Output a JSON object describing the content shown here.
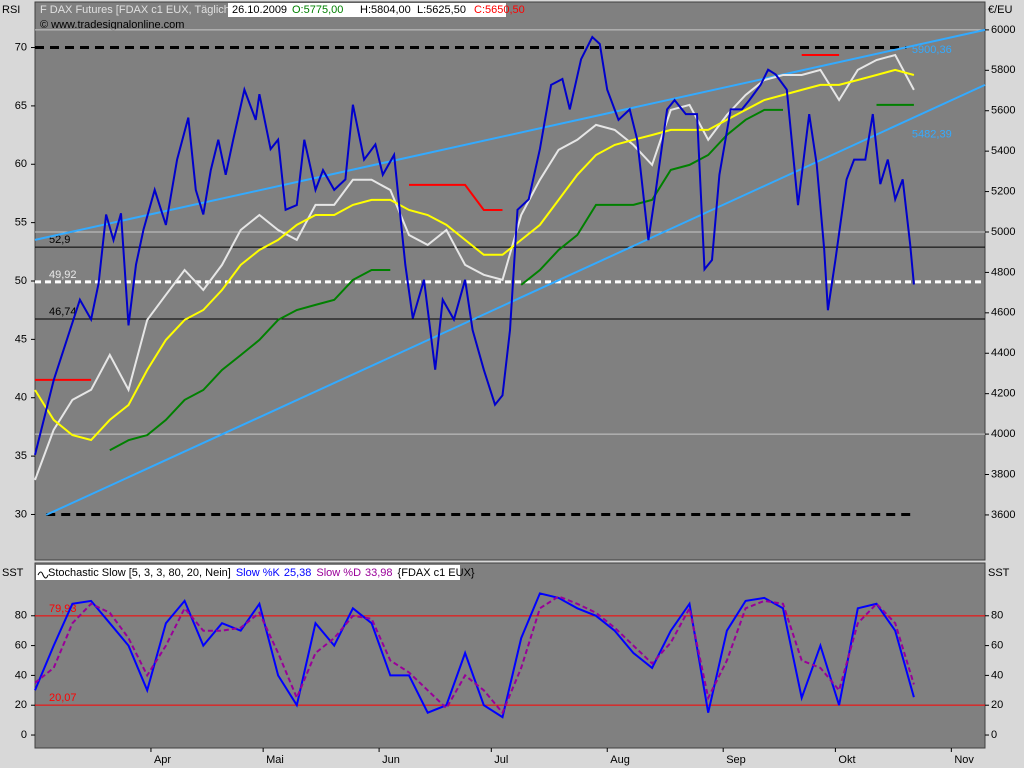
{
  "chart_data": [
    {
      "type": "line",
      "title": "F DAX Futures [FDAX c1 EUX, Täglich]",
      "quote": {
        "date": "26.10.2009",
        "open": "O:5775,00",
        "high": "H:5804,00",
        "low": "L:5625,50",
        "close": "C:5650,50"
      },
      "copyright": "© www.tradesignalonline.com",
      "ylabel": "RSI",
      "y2label": "€/EU",
      "xlim": [
        60,
        314
      ],
      "ylim": [
        26.1,
        73.9
      ],
      "y2lim": [
        3377,
        6138
      ],
      "yticks": [
        30,
        35,
        40,
        45,
        50,
        55,
        60,
        65,
        70
      ],
      "y2ticks": [
        3600,
        3800,
        4000,
        4200,
        4400,
        4600,
        4800,
        5000,
        5200,
        5400,
        5600,
        5800,
        6000
      ],
      "y2grid": [
        4000,
        5000,
        6000
      ],
      "x": [
        60,
        65,
        70,
        75,
        80,
        85,
        90,
        95,
        100,
        105,
        110,
        115,
        120,
        125,
        130,
        135,
        140,
        145,
        150,
        155,
        160,
        165,
        170,
        175,
        180,
        185,
        190,
        195,
        200,
        205,
        210,
        215,
        220,
        225,
        230,
        235,
        240,
        245,
        250,
        255,
        260,
        265,
        270,
        275,
        280,
        285,
        290,
        295
      ],
      "series": [
        {
          "color": "#e6e6e6",
          "axis": "y2",
          "values": [
            3773,
            4021,
            4169,
            4219,
            4392,
            4219,
            4565,
            4689,
            4812,
            4713,
            4837,
            5010,
            5084,
            5010,
            4961,
            5134,
            5134,
            5258,
            5258,
            5208,
            4985,
            4936,
            5010,
            4837,
            4788,
            4763,
            5084,
            5258,
            5406,
            5456,
            5530,
            5505,
            5431,
            5332,
            5604,
            5629,
            5456,
            5579,
            5678,
            5752,
            5777,
            5777,
            5802,
            5653,
            5802,
            5851,
            5876,
            5703
          ]
        },
        {
          "color": "#008000",
          "axis": "y2",
          "values": [
            null,
            null,
            null,
            null,
            3920,
            3970,
            3995,
            4070,
            4169,
            4218,
            4317,
            4391,
            4466,
            4565,
            4614,
            4639,
            4664,
            4763,
            4812,
            4812,
            null,
            null,
            null,
            null,
            null,
            null,
            4738,
            4812,
            4911,
            4985,
            5134,
            5134,
            5134,
            5159,
            5307,
            5332,
            5381,
            5480,
            5555,
            5604,
            5604,
            null,
            null,
            null,
            null,
            5629,
            5629,
            5629
          ]
        },
        {
          "color": "#ff0000",
          "axis": "y2",
          "values": [
            4268,
            4268,
            4268,
            4268,
            null,
            null,
            null,
            null,
            null,
            null,
            null,
            null,
            null,
            null,
            null,
            null,
            null,
            null,
            null,
            null,
            5233,
            5233,
            5233,
            5233,
            5109,
            5109,
            null,
            null,
            null,
            null,
            null,
            null,
            null,
            null,
            null,
            null,
            null,
            null,
            null,
            null,
            null,
            5876,
            5876,
            5876,
            null,
            null,
            null,
            null
          ]
        },
        {
          "color": "#ffff00",
          "axis": "y2",
          "values": [
            4218,
            4070,
            3995,
            3971,
            4070,
            4144,
            4317,
            4466,
            4565,
            4614,
            4713,
            4837,
            4911,
            4961,
            5035,
            5084,
            5084,
            5134,
            5159,
            5159,
            5109,
            5084,
            5035,
            4961,
            4887,
            4887,
            4961,
            5035,
            5159,
            5283,
            5381,
            5431,
            5456,
            5480,
            5505,
            5505,
            5505,
            5555,
            5604,
            5653,
            5678,
            5703,
            5728,
            5728,
            5752,
            5777,
            5802,
            5777
          ]
        },
        {
          "color": "#0000cc",
          "axis": "y",
          "x": [
            60,
            65,
            72,
            75,
            77,
            79,
            81,
            83,
            85,
            87,
            89,
            92,
            95,
            98,
            101,
            103,
            105,
            107,
            109,
            111,
            113,
            116,
            119,
            120,
            123,
            125,
            127,
            130,
            132,
            135,
            137,
            140,
            143,
            145,
            148,
            151,
            153,
            156,
            159,
            161,
            164,
            167,
            169,
            172,
            175,
            177,
            180,
            183,
            185,
            187,
            189,
            192,
            195,
            198,
            201,
            203,
            206,
            209,
            211,
            213,
            216,
            219,
            221,
            224,
            226,
            229,
            231,
            234,
            237,
            239,
            241,
            243,
            246,
            249,
            251,
            254,
            256,
            258,
            261,
            264,
            267,
            269,
            271,
            272,
            274,
            277,
            279,
            282,
            284,
            286,
            288,
            290,
            292,
            294,
            295
          ],
          "values": [
            35.1,
            41.5,
            48.4,
            46.7,
            49.8,
            55.7,
            53.5,
            55.8,
            46.2,
            51.4,
            54.4,
            57.8,
            54.8,
            60.4,
            64.0,
            57.8,
            55.7,
            59.5,
            62.1,
            59.1,
            62.1,
            66.4,
            63.8,
            66.0,
            61.3,
            62.1,
            56.1,
            56.5,
            62.1,
            57.8,
            59.5,
            57.8,
            58.7,
            65.1,
            60.4,
            61.7,
            59.1,
            60.8,
            51.4,
            46.8,
            50.1,
            42.4,
            48.4,
            46.7,
            50.1,
            45.8,
            42.4,
            39.4,
            40.2,
            45.8,
            56.1,
            57.0,
            61.3,
            66.8,
            67.3,
            64.7,
            69.0,
            70.9,
            70.3,
            66.4,
            63.8,
            64.7,
            62.1,
            53.5,
            57.8,
            64.7,
            65.5,
            64.3,
            64.3,
            51.0,
            51.8,
            59.1,
            64.7,
            64.7,
            65.5,
            66.8,
            68.1,
            67.7,
            66.4,
            56.5,
            64.3,
            60.0,
            52.7,
            47.5,
            51.8,
            58.7,
            60.4,
            60.4,
            64.3,
            58.3,
            60.4,
            57.0,
            58.7,
            53.1,
            49.7
          ]
        }
      ],
      "levels": [
        {
          "value": 52.9,
          "label": "52,9",
          "color": "#000000"
        },
        {
          "value": 49.92,
          "label": "49,92",
          "color": "#ffffff"
        },
        {
          "value": 46.74,
          "label": "46,74",
          "color": "#000000"
        }
      ],
      "dashed_levels": [
        {
          "value": 70,
          "x": [
            60,
            293
          ]
        },
        {
          "value": 30,
          "x": [
            63,
            294
          ]
        }
      ],
      "trendlines": [
        {
          "color": "#33aaff",
          "x": [
            60,
            314
          ],
          "values": [
            4961,
            6000
          ],
          "end": {
            "value": 5900.36,
            "label": "5900,36"
          }
        },
        {
          "color": "#33aaff",
          "x": [
            63,
            314
          ],
          "values": [
            3600,
            5728
          ],
          "end": {
            "value": 5482.39,
            "label": "5482,39"
          }
        }
      ]
    },
    {
      "type": "line",
      "title": "Stochastic Slow [5, 3, 3, 80, 20, Nein]",
      "instrument": "{FDAX c1 EUX}",
      "ylabel": "SST",
      "y2label": "SST",
      "xlim": [
        60,
        314
      ],
      "ylim": [
        -8.7,
        115.4
      ],
      "yticks": [
        0,
        20,
        40,
        60,
        80
      ],
      "xticks": [
        {
          "value": 91,
          "label": "Apr"
        },
        {
          "value": 121,
          "label": "Mai"
        },
        {
          "value": 152,
          "label": "Jun"
        },
        {
          "value": 182,
          "label": "Jul"
        },
        {
          "value": 213,
          "label": "Aug"
        },
        {
          "value": 244,
          "label": "Sep"
        },
        {
          "value": 274,
          "label": "Okt"
        },
        {
          "value": 305,
          "label": "Nov"
        }
      ],
      "x": [
        60,
        65,
        70,
        75,
        80,
        85,
        90,
        95,
        100,
        105,
        110,
        115,
        120,
        125,
        130,
        135,
        140,
        145,
        150,
        155,
        160,
        165,
        170,
        175,
        180,
        185,
        190,
        195,
        200,
        205,
        210,
        215,
        220,
        225,
        230,
        235,
        240,
        245,
        250,
        255,
        260,
        265,
        270,
        275,
        280,
        285,
        290,
        295
      ],
      "series": [
        {
          "name": "Slow %K",
          "last_label": "25,38",
          "color": "#0000ff",
          "dash": false,
          "values": [
            30,
            60,
            88,
            90,
            75,
            60,
            30,
            75,
            90,
            60,
            75,
            70,
            88,
            40,
            20,
            75,
            60,
            85,
            75,
            40,
            40,
            15,
            20,
            55,
            20,
            12,
            65,
            95,
            92,
            85,
            80,
            70,
            55,
            45,
            70,
            88,
            15,
            70,
            90,
            92,
            85,
            25,
            60,
            20,
            85,
            88,
            70,
            25.38
          ]
        },
        {
          "name": "Slow %D",
          "last_label": "33,98",
          "color": "#990099",
          "dash": true,
          "values": [
            35,
            45,
            75,
            88,
            82,
            65,
            40,
            60,
            85,
            70,
            70,
            72,
            82,
            55,
            25,
            55,
            65,
            80,
            78,
            50,
            42,
            30,
            18,
            40,
            30,
            15,
            45,
            85,
            93,
            88,
            82,
            72,
            60,
            48,
            62,
            85,
            25,
            50,
            85,
            90,
            88,
            50,
            45,
            30,
            75,
            88,
            75,
            33.98
          ]
        }
      ],
      "levels": [
        {
          "value": 79.93,
          "label": "79,93",
          "color": "#ff0000"
        },
        {
          "value": 20.07,
          "label": "20,07",
          "color": "#ff0000"
        }
      ]
    }
  ]
}
